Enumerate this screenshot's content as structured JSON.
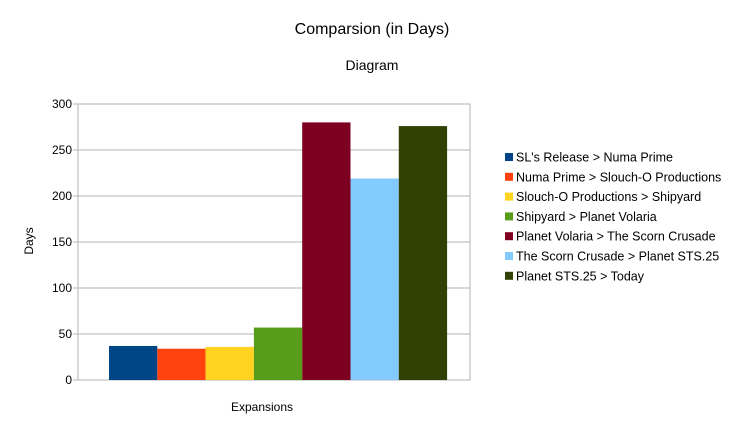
{
  "chart_data": {
    "type": "bar",
    "title": "Comparsion (in Days)",
    "subtitle": "Diagram",
    "xlabel": "Expansions",
    "ylabel": "Days",
    "ylim": [
      0,
      300
    ],
    "yticks": [
      0,
      50,
      100,
      150,
      200,
      250,
      300
    ],
    "grid": true,
    "legend_position": "right",
    "categories": [
      ""
    ],
    "series": [
      {
        "name": "SL's Release > Numa Prime",
        "color": "#004586",
        "values": [
          37
        ]
      },
      {
        "name": "Numa Prime > Slouch-O Productions",
        "color": "#ff420e",
        "values": [
          34
        ]
      },
      {
        "name": "Slouch-O Productions > Shipyard",
        "color": "#ffd320",
        "values": [
          36
        ]
      },
      {
        "name": "Shipyard > Planet Volaria",
        "color": "#579d1c",
        "values": [
          57
        ]
      },
      {
        "name": "Planet Volaria > The Scorn Crusade",
        "color": "#7e0021",
        "values": [
          280
        ]
      },
      {
        "name": "The Scorn Crusade > Planet STS.25",
        "color": "#83caff",
        "values": [
          219
        ]
      },
      {
        "name": "Planet STS.25 > Today",
        "color": "#314004",
        "values": [
          276
        ]
      }
    ]
  }
}
